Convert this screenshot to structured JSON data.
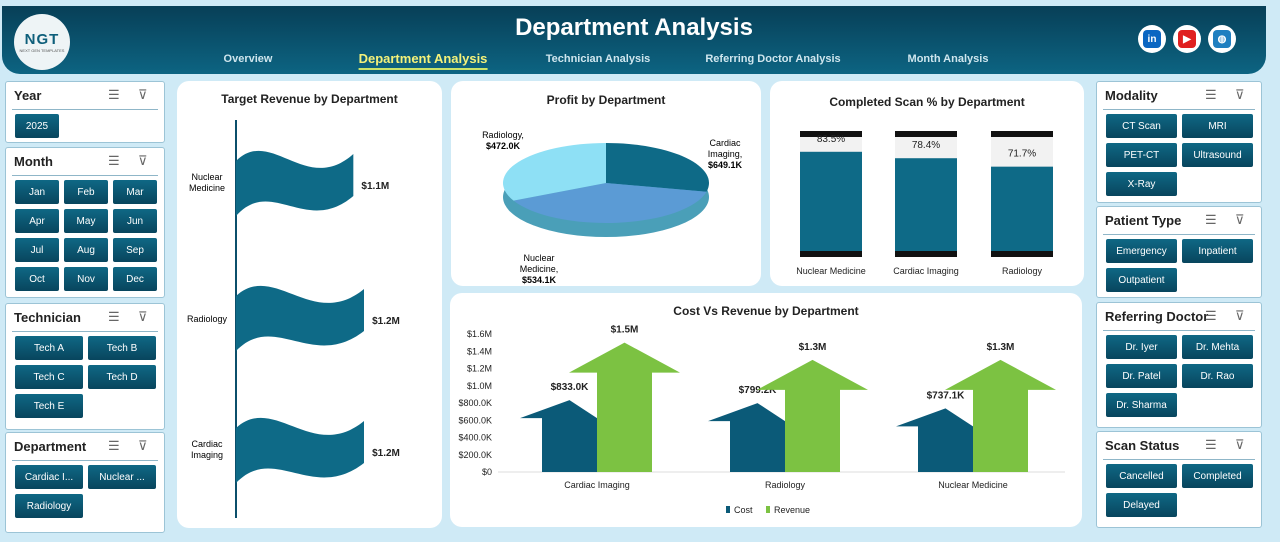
{
  "header": {
    "title": "Department Analysis",
    "logo_text": "NGT",
    "logo_sub": "NEXT GEN TEMPLATES",
    "nav": [
      {
        "label": "Overview",
        "active": false
      },
      {
        "label": "Department Analysis",
        "active": true
      },
      {
        "label": "Technician Analysis",
        "active": false
      },
      {
        "label": "Referring Doctor Analysis",
        "active": false
      },
      {
        "label": "Month Analysis",
        "active": false
      }
    ],
    "social": [
      {
        "icon": "linkedin-icon",
        "glyph": "in",
        "color": "#0a66c2"
      },
      {
        "icon": "youtube-icon",
        "glyph": "▶",
        "color": "#e02020"
      },
      {
        "icon": "globe-icon",
        "glyph": "◍",
        "color": "#1f7fc0"
      }
    ]
  },
  "slicers_left": [
    {
      "title": "Year",
      "items": [
        "2025"
      ]
    },
    {
      "title": "Month",
      "items": [
        "Jan",
        "Feb",
        "Mar",
        "Apr",
        "May",
        "Jun",
        "Jul",
        "Aug",
        "Sep",
        "Oct",
        "Nov",
        "Dec"
      ]
    },
    {
      "title": "Technician",
      "items": [
        "Tech A",
        "Tech B",
        "Tech C",
        "Tech D",
        "Tech E"
      ]
    },
    {
      "title": "Department",
      "items": [
        "Cardiac I...",
        "Nuclear ...",
        "Radiology"
      ]
    }
  ],
  "slicers_right": [
    {
      "title": "Modality",
      "items": [
        "CT Scan",
        "MRI",
        "PET-CT",
        "Ultrasound",
        "X-Ray"
      ]
    },
    {
      "title": "Patient Type",
      "items": [
        "Emergency",
        "Inpatient",
        "Outpatient"
      ]
    },
    {
      "title": "Referring Doctor",
      "items": [
        "Dr. Iyer",
        "Dr. Mehta",
        "Dr. Patel",
        "Dr. Rao",
        "Dr. Sharma"
      ]
    },
    {
      "title": "Scan Status",
      "items": [
        "Cancelled",
        "Completed",
        "Delayed"
      ]
    }
  ],
  "chart_data": [
    {
      "type": "bar",
      "orientation": "horizontal",
      "title": "Target Revenue by Department",
      "categories": [
        "Nuclear Medicine",
        "Radiology",
        "Cardiac Imaging"
      ],
      "values": [
        1.1,
        1.2,
        1.2
      ],
      "labels": [
        "$1.1M",
        "$1.2M",
        "$1.2M"
      ],
      "unit": "$M",
      "color": "#0e6a87"
    },
    {
      "type": "pie",
      "title": "Profit by Department",
      "categories": [
        "Radiology",
        "Cardiac Imaging",
        "Nuclear Medicine"
      ],
      "values": [
        472.0,
        649.1,
        534.1
      ],
      "labels": [
        "Radiology, $472.0K",
        "Cardiac Imaging, $649.1K",
        "Nuclear Medicine, $534.1K"
      ],
      "colors": [
        "#0e6a87",
        "#5b9bd5",
        "#8ee0f5"
      ]
    },
    {
      "type": "bar",
      "title": "Completed Scan % by Department",
      "categories": [
        "Nuclear Medicine",
        "Cardiac Imaging",
        "Radiology"
      ],
      "values": [
        83.5,
        78.4,
        71.7
      ],
      "labels": [
        "83.5%",
        "78.4%",
        "71.7%"
      ],
      "ylim": [
        0,
        100
      ],
      "color": "#0e6a87"
    },
    {
      "type": "bar",
      "title": "Cost Vs Revenue by Department",
      "categories": [
        "Cardiac Imaging",
        "Radiology",
        "Nuclear Medicine"
      ],
      "series": [
        {
          "name": "Cost",
          "values": [
            833.0,
            799.2,
            737.1
          ],
          "labels": [
            "$833.0K",
            "$799.2K",
            "$737.1K"
          ],
          "color": "#0b5a78"
        },
        {
          "name": "Revenue",
          "values": [
            1500,
            1300,
            1300
          ],
          "labels": [
            "$1.5M",
            "$1.3M",
            "$1.3M"
          ],
          "color": "#7cc242"
        }
      ],
      "yticks": [
        "$0",
        "$200.0K",
        "$400.0K",
        "$600.0K",
        "$800.0K",
        "$1.0M",
        "$1.2M",
        "$1.4M",
        "$1.6M"
      ],
      "ylim": [
        0,
        1600
      ],
      "unit": "$K",
      "legend": "bottom"
    }
  ]
}
